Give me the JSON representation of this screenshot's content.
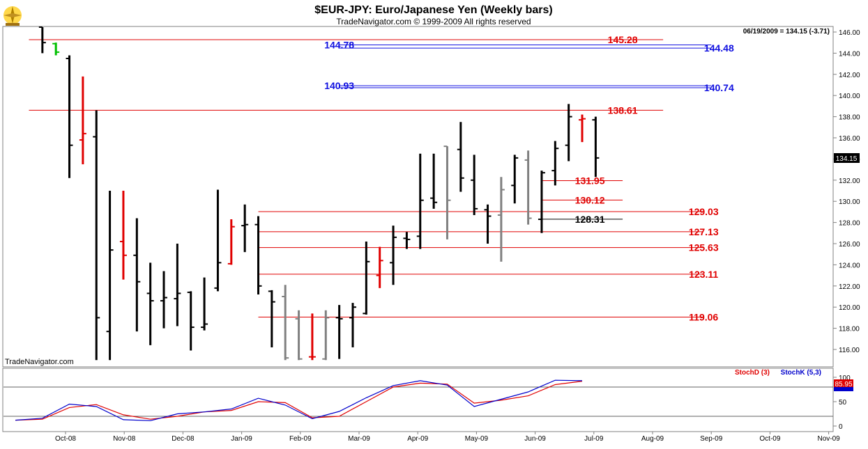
{
  "header": {
    "title": "$EUR-JPY:  Euro/Japanese Yen  (Weekly bars)",
    "subtitle": "TradeNavigator.com © 1999-2009 All rights reserved",
    "quote": "06/19/2009 = 134.15 (-3.71)",
    "watermark": "TradeNavigator.com"
  },
  "colors": {
    "up": "#000000",
    "down": "#e00000",
    "neutral": "#808080",
    "reversal": "#00c000",
    "resistance": "#e00000",
    "fib": "#1010e0",
    "stochD": "#e00000",
    "stochK": "#0000cc"
  },
  "chart_data": {
    "type": "ohlc",
    "ylim": [
      115,
      147
    ],
    "yticks": [
      "116.00",
      "118.00",
      "120.00",
      "122.00",
      "124.00",
      "126.00",
      "128.00",
      "130.00",
      "132.00",
      "134.00",
      "136.00",
      "138.00",
      "140.00",
      "142.00",
      "144.00",
      "146.00"
    ],
    "last_price": "134.15",
    "xticks": [
      "Oct-08",
      "Nov-08",
      "Dec-08",
      "Jan-09",
      "Feb-09",
      "Mar-09",
      "Apr-09",
      "May-09",
      "Jun-09",
      "Jul-09",
      "Aug-09",
      "Sep-09",
      "Oct-09",
      "Nov-09"
    ],
    "bars": [
      {
        "date": "2008-09-19",
        "h": 147.0,
        "l": 144.0,
        "o": 146.5,
        "c": 145.0,
        "color": "up"
      },
      {
        "date": "2008-09-26",
        "h": 145.0,
        "l": 143.8,
        "o": 144.9,
        "c": 144.1,
        "color": "reversal"
      },
      {
        "date": "2008-10-03",
        "h": 143.8,
        "l": 132.2,
        "o": 143.5,
        "c": 135.3,
        "color": "up"
      },
      {
        "date": "2008-10-10",
        "h": 141.8,
        "l": 133.5,
        "o": 135.8,
        "c": 136.4,
        "color": "down"
      },
      {
        "date": "2008-10-17",
        "h": 138.6,
        "l": 115.0,
        "o": 136.1,
        "c": 119.0,
        "color": "up"
      },
      {
        "date": "2008-10-24",
        "h": 131.0,
        "l": 115.0,
        "o": 117.7,
        "c": 125.4,
        "color": "up"
      },
      {
        "date": "2008-10-31",
        "h": 131.0,
        "l": 122.6,
        "o": 126.2,
        "c": 124.9,
        "color": "down"
      },
      {
        "date": "2008-11-07",
        "h": 128.4,
        "l": 117.7,
        "o": 124.9,
        "c": 122.4,
        "color": "up"
      },
      {
        "date": "2008-11-14",
        "h": 124.2,
        "l": 116.4,
        "o": 121.3,
        "c": 120.6,
        "color": "up"
      },
      {
        "date": "2008-11-21",
        "h": 123.4,
        "l": 118.0,
        "o": 120.6,
        "c": 120.9,
        "color": "up"
      },
      {
        "date": "2008-11-28",
        "h": 126.0,
        "l": 118.2,
        "o": 120.8,
        "c": 121.3,
        "color": "up"
      },
      {
        "date": "2008-12-05",
        "h": 121.5,
        "l": 115.9,
        "o": 121.4,
        "c": 118.1,
        "color": "up"
      },
      {
        "date": "2008-12-12",
        "h": 122.8,
        "l": 117.8,
        "o": 118.1,
        "c": 118.4,
        "color": "up"
      },
      {
        "date": "2008-12-19",
        "h": 131.1,
        "l": 121.5,
        "o": 121.8,
        "c": 124.2,
        "color": "up"
      },
      {
        "date": "2008-12-26",
        "h": 128.3,
        "l": 124.0,
        "o": 124.1,
        "c": 127.6,
        "color": "down"
      },
      {
        "date": "2009-01-02",
        "h": 129.7,
        "l": 125.2,
        "o": 127.7,
        "c": 127.8,
        "color": "up"
      },
      {
        "date": "2009-01-09",
        "h": 128.6,
        "l": 121.2,
        "o": 127.8,
        "c": 122.0,
        "color": "up"
      },
      {
        "date": "2009-01-16",
        "h": 121.6,
        "l": 116.2,
        "o": 121.5,
        "c": 120.5,
        "color": "up"
      },
      {
        "date": "2009-01-23",
        "h": 122.1,
        "l": 115.0,
        "o": 121.0,
        "c": 115.2,
        "color": "neutral"
      },
      {
        "date": "2009-01-30",
        "h": 119.7,
        "l": 115.0,
        "o": 118.9,
        "c": 115.1,
        "color": "neutral"
      },
      {
        "date": "2009-02-06",
        "h": 119.4,
        "l": 115.0,
        "o": 115.3,
        "c": 115.3,
        "color": "down"
      },
      {
        "date": "2009-02-13",
        "h": 119.7,
        "l": 115.0,
        "o": 115.1,
        "c": 119.0,
        "color": "neutral"
      },
      {
        "date": "2009-02-20",
        "h": 120.2,
        "l": 115.1,
        "o": 119.0,
        "c": 118.9,
        "color": "up"
      },
      {
        "date": "2009-02-27",
        "h": 120.4,
        "l": 116.2,
        "o": 119.0,
        "c": 120.0,
        "color": "up"
      },
      {
        "date": "2009-03-06",
        "h": 126.2,
        "l": 119.3,
        "o": 119.4,
        "c": 124.3,
        "color": "up"
      },
      {
        "date": "2009-03-13",
        "h": 125.7,
        "l": 121.8,
        "o": 123.0,
        "c": 124.4,
        "color": "down"
      },
      {
        "date": "2009-03-20",
        "h": 127.7,
        "l": 122.1,
        "o": 124.2,
        "c": 126.6,
        "color": "up"
      },
      {
        "date": "2009-03-27",
        "h": 127.1,
        "l": 125.5,
        "o": 126.5,
        "c": 126.4,
        "color": "up"
      },
      {
        "date": "2009-04-03",
        "h": 134.5,
        "l": 125.5,
        "o": 126.7,
        "c": 130.1,
        "color": "up"
      },
      {
        "date": "2009-04-10",
        "h": 134.5,
        "l": 129.3,
        "o": 130.3,
        "c": 129.9,
        "color": "up"
      },
      {
        "date": "2009-04-17",
        "h": 135.2,
        "l": 126.4,
        "o": 135.2,
        "c": 130.1,
        "color": "neutral"
      },
      {
        "date": "2009-04-24",
        "h": 137.5,
        "l": 130.9,
        "o": 134.9,
        "c": 132.2,
        "color": "up"
      },
      {
        "date": "2009-05-01",
        "h": 134.4,
        "l": 128.7,
        "o": 132.0,
        "c": 129.3,
        "color": "up"
      },
      {
        "date": "2009-05-08",
        "h": 129.7,
        "l": 126.0,
        "o": 129.2,
        "c": 128.6,
        "color": "up"
      },
      {
        "date": "2009-05-15",
        "h": 132.3,
        "l": 124.3,
        "o": 128.7,
        "c": 131.1,
        "color": "neutral"
      },
      {
        "date": "2009-05-22",
        "h": 134.4,
        "l": 129.8,
        "o": 131.5,
        "c": 134.1,
        "color": "up"
      },
      {
        "date": "2009-05-29",
        "h": 134.8,
        "l": 127.8,
        "o": 133.9,
        "c": 128.4,
        "color": "neutral"
      },
      {
        "date": "2009-06-05",
        "h": 132.9,
        "l": 127.0,
        "o": 128.3,
        "c": 132.7,
        "color": "up"
      },
      {
        "date": "2009-06-12",
        "h": 135.7,
        "l": 131.5,
        "o": 132.9,
        "c": 135.0,
        "color": "up"
      },
      {
        "date": "2009-06-19",
        "h": 139.2,
        "l": 133.8,
        "o": 135.3,
        "c": 138.0,
        "color": "up"
      },
      {
        "date": "2009-06-26",
        "h": 138.2,
        "l": 135.6,
        "o": 137.7,
        "c": 137.8,
        "color": "down"
      },
      {
        "date": "2009-07-03",
        "h": 138.0,
        "l": 132.3,
        "o": 137.7,
        "c": 134.1,
        "color": "up"
      }
    ],
    "levels": [
      {
        "value": 145.28,
        "label": "145.28",
        "color": "resistance",
        "start_date": "2008-09-12",
        "end_date": "2009-08-07",
        "label_date": "2009-07-17"
      },
      {
        "value": 144.78,
        "label": "144.78",
        "color": "fib",
        "start_date": "2009-02-20",
        "end_date": "2009-09-01",
        "label_date": "2009-02-20"
      },
      {
        "value": 144.48,
        "label": "144.48",
        "color": "fib",
        "start_date": "2009-02-20",
        "end_date": "2009-09-01",
        "label_date": "2009-09-05"
      },
      {
        "value": 140.93,
        "label": "140.93",
        "color": "fib",
        "start_date": "2009-02-20",
        "end_date": "2009-09-01",
        "label_date": "2009-02-20"
      },
      {
        "value": 140.74,
        "label": "140.74",
        "color": "fib",
        "start_date": "2009-02-20",
        "end_date": "2009-09-01",
        "label_date": "2009-09-05"
      },
      {
        "value": 138.61,
        "label": "138.61",
        "color": "resistance",
        "start_date": "2008-09-12",
        "end_date": "2009-08-07",
        "label_date": "2009-07-17"
      },
      {
        "value": 131.95,
        "label": "131.95",
        "color": "resistance",
        "start_date": "2009-06-05",
        "end_date": "2009-07-17",
        "label_date": "2009-06-30"
      },
      {
        "value": 130.12,
        "label": "130.12",
        "color": "resistance",
        "start_date": "2009-06-05",
        "end_date": "2009-07-17",
        "label_date": "2009-06-30"
      },
      {
        "value": 129.03,
        "label": "129.03",
        "color": "resistance",
        "start_date": "2009-01-09",
        "end_date": "2009-08-28",
        "label_date": "2009-08-28"
      },
      {
        "value": 128.31,
        "label": "128.31",
        "color": "up",
        "start_date": "2009-06-05",
        "end_date": "2009-07-17",
        "label_date": "2009-06-30"
      },
      {
        "value": 127.13,
        "label": "127.13",
        "color": "resistance",
        "start_date": "2009-01-09",
        "end_date": "2009-08-28",
        "label_date": "2009-08-28"
      },
      {
        "value": 125.63,
        "label": "125.63",
        "color": "resistance",
        "start_date": "2009-01-09",
        "end_date": "2009-08-28",
        "label_date": "2009-08-28"
      },
      {
        "value": 123.11,
        "label": "123.11",
        "color": "resistance",
        "start_date": "2009-01-09",
        "end_date": "2009-08-28",
        "label_date": "2009-08-28"
      },
      {
        "value": 119.06,
        "label": "119.06",
        "color": "resistance",
        "start_date": "2009-01-09",
        "end_date": "2009-08-28",
        "label_date": "2009-08-28"
      }
    ],
    "stochastic": {
      "ylim": [
        0,
        100
      ],
      "yticks": [
        "0",
        "50",
        "100"
      ],
      "reference_lines": [
        80,
        20
      ],
      "d_label": "StochD (3)",
      "k_label": "StochK (5,3)",
      "d_value": "85.95",
      "dates": [
        "2008-09-05",
        "2008-09-19",
        "2008-10-03",
        "2008-10-17",
        "2008-10-31",
        "2008-11-14",
        "2008-11-28",
        "2008-12-12",
        "2008-12-26",
        "2009-01-09",
        "2009-01-23",
        "2009-02-06",
        "2009-02-20",
        "2009-03-06",
        "2009-03-20",
        "2009-04-03",
        "2009-04-17",
        "2009-05-01",
        "2009-05-15",
        "2009-05-29",
        "2009-06-12",
        "2009-06-26"
      ],
      "k": [
        12,
        16,
        45,
        40,
        13,
        11,
        25,
        29,
        35,
        57,
        43,
        15,
        30,
        58,
        83,
        93,
        84,
        40,
        55,
        70,
        94,
        93
      ],
      "d": [
        12,
        14,
        38,
        44,
        23,
        14,
        20,
        29,
        32,
        50,
        48,
        17,
        20,
        50,
        80,
        88,
        86,
        47,
        53,
        62,
        85,
        92
      ]
    }
  }
}
